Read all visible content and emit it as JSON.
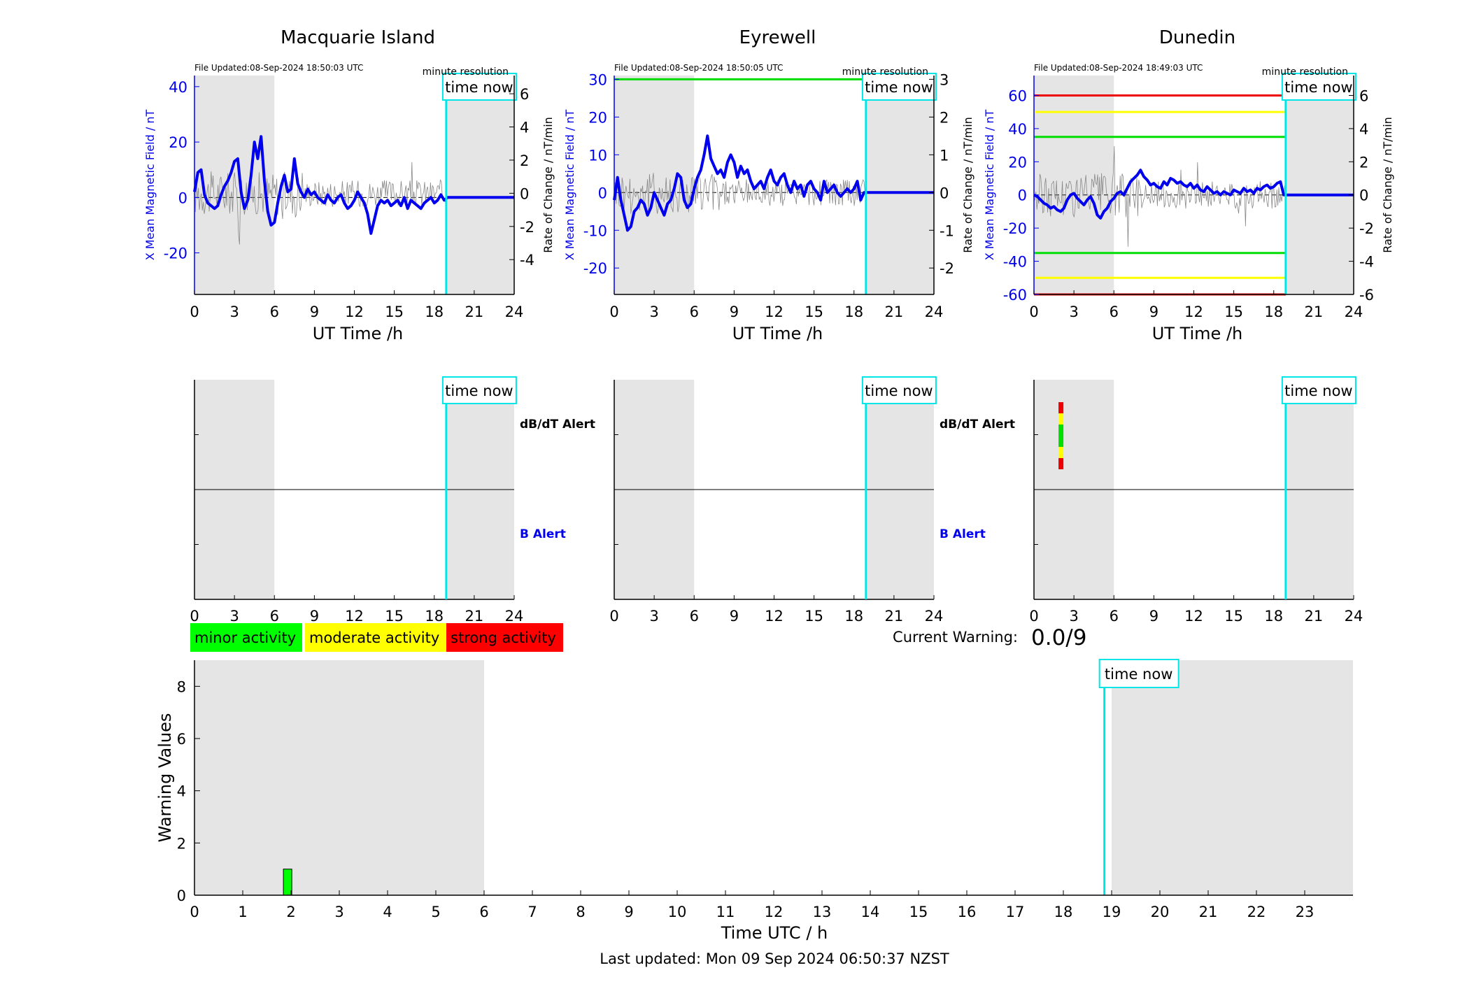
{
  "station_panels": [
    {
      "title": "Macquarie Island",
      "file_updated": "File Updated:08-Sep-2024 18:50:03 UTC",
      "resolution": "minute resolution",
      "time_now_label": "time now",
      "xlabel": "UT Time /h",
      "left_ylabel": "X Mean Magnetic Field / nT",
      "right_ylabel": "Rate of Change / nT/min",
      "left_yticks": [
        40,
        20,
        0,
        -20
      ],
      "left_ylim": [
        -35,
        44
      ],
      "right_yticks": [
        6,
        4,
        2,
        0,
        -2,
        -4
      ],
      "right_ylim": [
        -6.1,
        7.1
      ],
      "threshold_lines": []
    },
    {
      "title": "Eyrewell",
      "file_updated": "File Updated:08-Sep-2024 18:50:05 UTC",
      "resolution": "minute resolution",
      "time_now_label": "time now",
      "xlabel": "UT Time /h",
      "left_ylabel": "X Mean Magnetic Field / nT",
      "right_ylabel": "Rate of Change / nT/min",
      "left_yticks": [
        30,
        20,
        10,
        0,
        -10,
        -20
      ],
      "left_ylim": [
        -27,
        31
      ],
      "right_yticks": [
        3,
        2,
        1,
        0,
        -1,
        -2
      ],
      "right_ylim": [
        -2.7,
        3.1
      ],
      "threshold_lines": [
        {
          "value": 30,
          "color": "#00dd00"
        }
      ]
    },
    {
      "title": "Dunedin",
      "file_updated": "File Updated:08-Sep-2024 18:49:03 UTC",
      "resolution": "minute resolution",
      "time_now_label": "time now",
      "xlabel": "UT Time /h",
      "left_ylabel": "X Mean Magnetic Field / nT",
      "right_ylabel": "Rate of Change / nT/min",
      "left_yticks": [
        60,
        40,
        20,
        0,
        -20,
        -40,
        -60
      ],
      "left_ylim": [
        -60,
        72
      ],
      "right_yticks": [
        6,
        4,
        2,
        0,
        -2,
        -4,
        -6
      ],
      "right_ylim": [
        -6,
        7.2
      ],
      "threshold_lines": [
        {
          "value": 60,
          "color": "#ee0000"
        },
        {
          "value": 50,
          "color": "#ffff00"
        },
        {
          "value": 35,
          "color": "#00dd00"
        },
        {
          "value": -35,
          "color": "#00dd00"
        },
        {
          "value": -50,
          "color": "#ffff00"
        },
        {
          "value": -60,
          "color": "#ee0000"
        }
      ]
    }
  ],
  "alert_panels": [
    {
      "station": "Macquarie Island",
      "dbdt_label": "dB/dT Alert",
      "b_label": "B Alert",
      "time_now_label": "time now",
      "markers": []
    },
    {
      "station": "Eyrewell",
      "dbdt_label": "dB/dT Alert",
      "b_label": "B Alert",
      "time_now_label": "time now",
      "markers": []
    },
    {
      "station": "Dunedin",
      "dbdt_label": "",
      "b_label": "",
      "time_now_label": "time now",
      "markers": [
        {
          "hour": 2.0,
          "levels": [
            "#ee0000",
            "#ffff00",
            "#00dd00",
            "#00dd00",
            "#ffff00",
            "#ee0000"
          ]
        }
      ]
    }
  ],
  "legend": [
    {
      "label": "minor activity",
      "color": "#00ff00"
    },
    {
      "label": "moderate activity",
      "color": "#ffff00"
    },
    {
      "label": "strong activity",
      "color": "#ff0000"
    }
  ],
  "current_warning": {
    "label": "Current Warning:",
    "value": "0.0/9"
  },
  "warning_chart": {
    "ylabel": "Warning Values",
    "xlabel": "Time UTC / h",
    "time_now_label": "time now",
    "yticks": [
      0,
      2,
      4,
      6,
      8
    ],
    "ylim": [
      0,
      9
    ],
    "xticks": [
      0,
      1,
      2,
      3,
      4,
      5,
      6,
      7,
      8,
      9,
      10,
      11,
      12,
      13,
      14,
      15,
      16,
      17,
      18,
      19,
      20,
      21,
      22,
      23
    ],
    "xlim": [
      0,
      24
    ]
  },
  "footer": "Last updated: Mon 09 Sep 2024 06:50:37 NZST",
  "chart_data": [
    {
      "type": "line",
      "title": "Macquarie Island",
      "xlabel": "UT Time /h",
      "ylabel": "X Mean Magnetic Field / nT",
      "y2label": "Rate of Change / nT/min",
      "xlim": [
        0,
        24
      ],
      "xticks": [
        0,
        3,
        6,
        9,
        12,
        15,
        18,
        21,
        24
      ],
      "night_shading": [
        [
          0,
          6
        ],
        [
          19,
          24
        ]
      ],
      "time_now": 18.9,
      "series": [
        {
          "axis": "left",
          "color": "#0000ee",
          "x": [
            0,
            0.25,
            0.5,
            0.75,
            1,
            1.25,
            1.5,
            1.75,
            2,
            2.25,
            2.5,
            2.75,
            3,
            3.25,
            3.5,
            3.75,
            4,
            4.25,
            4.5,
            4.75,
            5,
            5.25,
            5.5,
            5.75,
            6,
            6.25,
            6.5,
            6.75,
            7,
            7.25,
            7.5,
            7.75,
            8,
            8.25,
            8.5,
            8.75,
            9,
            9.25,
            9.5,
            9.75,
            10,
            10.25,
            10.5,
            10.75,
            11,
            11.25,
            11.5,
            11.75,
            12,
            12.25,
            12.5,
            12.75,
            13,
            13.25,
            13.5,
            13.75,
            14,
            14.25,
            14.5,
            14.75,
            15,
            15.25,
            15.5,
            15.75,
            16,
            16.25,
            16.5,
            16.75,
            17,
            17.25,
            17.5,
            17.75,
            18,
            18.25,
            18.5,
            18.75,
            19,
            20,
            21,
            22,
            23,
            24
          ],
          "y": [
            2,
            9,
            10,
            1,
            -2,
            -3,
            -4,
            -3,
            1,
            4,
            6,
            9,
            13,
            14,
            2,
            -4,
            -1,
            8,
            20,
            14,
            22,
            6,
            -5,
            -10,
            -9,
            -2,
            4,
            8,
            2,
            3,
            14,
            5,
            2,
            0,
            3,
            1,
            2,
            0,
            -1,
            -2,
            1,
            -1,
            -2,
            0,
            1,
            -2,
            -4,
            -3,
            -1,
            2,
            0,
            -2,
            -6,
            -13,
            -8,
            -3,
            -1,
            -2,
            -1,
            -3,
            -2,
            -1,
            -3,
            0,
            -4,
            -1,
            -2,
            -3,
            -4,
            -2,
            -1,
            0,
            -2,
            -1,
            1,
            -1,
            0,
            0,
            0,
            0,
            0,
            0
          ]
        }
      ]
    },
    {
      "type": "line",
      "title": "Eyrewell",
      "xlabel": "UT Time /h",
      "ylabel": "X Mean Magnetic Field / nT",
      "y2label": "Rate of Change / nT/min",
      "xlim": [
        0,
        24
      ],
      "xticks": [
        0,
        3,
        6,
        9,
        12,
        15,
        18,
        21,
        24
      ],
      "night_shading": [
        [
          0,
          6
        ],
        [
          19,
          24
        ]
      ],
      "time_now": 18.9,
      "series": [
        {
          "axis": "left",
          "color": "#0000ee",
          "x": [
            0,
            0.25,
            0.5,
            0.75,
            1,
            1.25,
            1.5,
            1.75,
            2,
            2.25,
            2.5,
            2.75,
            3,
            3.25,
            3.5,
            3.75,
            4,
            4.25,
            4.5,
            4.75,
            5,
            5.25,
            5.5,
            5.75,
            6,
            6.25,
            6.5,
            6.75,
            7,
            7.25,
            7.5,
            7.75,
            8,
            8.25,
            8.5,
            8.75,
            9,
            9.25,
            9.5,
            9.75,
            10,
            10.25,
            10.5,
            10.75,
            11,
            11.25,
            11.5,
            11.75,
            12,
            12.25,
            12.5,
            12.75,
            13,
            13.25,
            13.5,
            13.75,
            14,
            14.25,
            14.5,
            14.75,
            15,
            15.25,
            15.5,
            15.75,
            16,
            16.25,
            16.5,
            16.75,
            17,
            17.25,
            17.5,
            17.75,
            18,
            18.25,
            18.5,
            18.75,
            19,
            20,
            21,
            22,
            23,
            24
          ],
          "y": [
            -2,
            4,
            -2,
            -6,
            -10,
            -9,
            -5,
            -4,
            -2,
            -3,
            -6,
            -4,
            0,
            -2,
            -4,
            -6,
            -3,
            -2,
            1,
            5,
            4,
            -2,
            -4,
            -3,
            1,
            4,
            6,
            10,
            15,
            9,
            7,
            5,
            6,
            4,
            8,
            10,
            8,
            4,
            7,
            5,
            6,
            3,
            1,
            2,
            3,
            1,
            4,
            6,
            3,
            2,
            4,
            5,
            2,
            0,
            3,
            1,
            2,
            -1,
            2,
            3,
            1,
            0,
            -2,
            3,
            0,
            1,
            2,
            0,
            -1,
            0,
            1,
            0,
            1,
            3,
            -2,
            0,
            0,
            0,
            0,
            0,
            0,
            0
          ]
        }
      ]
    },
    {
      "type": "line",
      "title": "Dunedin",
      "xlabel": "UT Time /h",
      "ylabel": "X Mean Magnetic Field / nT",
      "y2label": "Rate of Change / nT/min",
      "xlim": [
        0,
        24
      ],
      "xticks": [
        0,
        3,
        6,
        9,
        12,
        15,
        18,
        21,
        24
      ],
      "night_shading": [
        [
          0,
          6
        ],
        [
          19,
          24
        ]
      ],
      "time_now": 18.9,
      "series": [
        {
          "axis": "left",
          "color": "#0000ee",
          "x": [
            0,
            0.25,
            0.5,
            0.75,
            1,
            1.25,
            1.5,
            1.75,
            2,
            2.25,
            2.5,
            2.75,
            3,
            3.25,
            3.5,
            3.75,
            4,
            4.25,
            4.5,
            4.75,
            5,
            5.25,
            5.5,
            5.75,
            6,
            6.25,
            6.5,
            6.75,
            7,
            7.25,
            7.5,
            7.75,
            8,
            8.25,
            8.5,
            8.75,
            9,
            9.25,
            9.5,
            9.75,
            10,
            10.25,
            10.5,
            10.75,
            11,
            11.25,
            11.5,
            11.75,
            12,
            12.25,
            12.5,
            12.75,
            13,
            13.25,
            13.5,
            13.75,
            14,
            14.25,
            14.5,
            14.75,
            15,
            15.25,
            15.5,
            15.75,
            16,
            16.25,
            16.5,
            16.75,
            17,
            17.25,
            17.5,
            17.75,
            18,
            18.25,
            18.5,
            18.75,
            19,
            20,
            21,
            22,
            23,
            24
          ],
          "y": [
            0,
            -1,
            -3,
            -5,
            -6,
            -8,
            -7,
            -9,
            -10,
            -8,
            -3,
            0,
            1,
            -2,
            -4,
            -6,
            -3,
            -1,
            -5,
            -12,
            -14,
            -10,
            -8,
            -4,
            -2,
            1,
            2,
            0,
            4,
            8,
            10,
            12,
            15,
            11,
            9,
            6,
            7,
            5,
            4,
            8,
            6,
            10,
            9,
            7,
            8,
            6,
            5,
            7,
            4,
            6,
            3,
            2,
            5,
            3,
            1,
            2,
            0,
            2,
            1,
            0,
            3,
            2,
            1,
            4,
            2,
            3,
            1,
            4,
            3,
            5,
            6,
            4,
            5,
            7,
            8,
            0,
            0,
            0,
            0,
            0,
            0,
            0
          ]
        }
      ]
    },
    {
      "type": "bar",
      "title": "",
      "xlabel": "Time UTC / h",
      "ylabel": "Warning Values",
      "xlim": [
        0,
        24
      ],
      "ylim": [
        0,
        9
      ],
      "night_shading": [
        [
          0,
          6
        ],
        [
          19,
          24
        ]
      ],
      "time_now": 18.85,
      "bars": [
        {
          "hour": 1.9,
          "value": 1,
          "color": "#00ff00"
        }
      ]
    }
  ]
}
